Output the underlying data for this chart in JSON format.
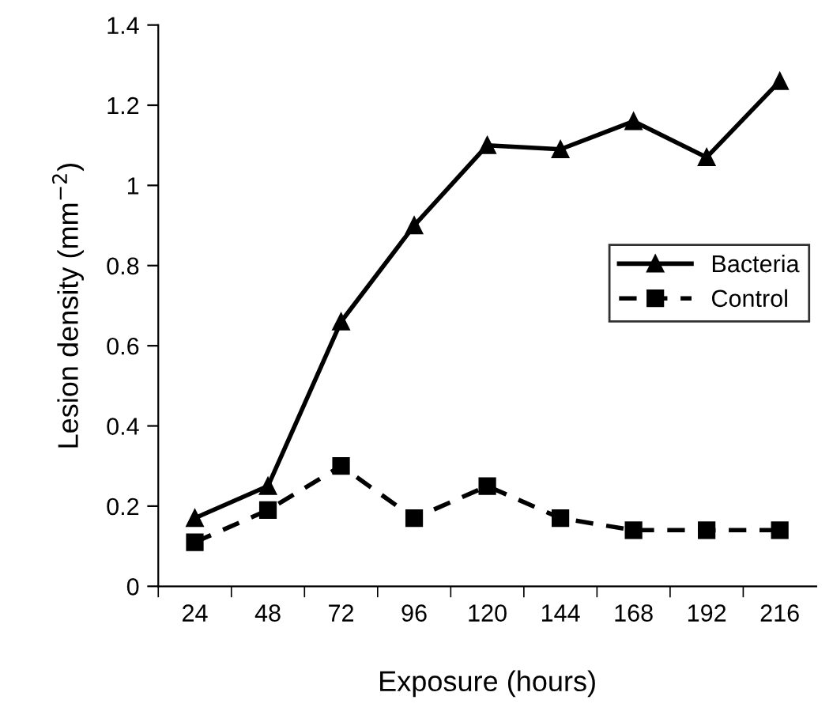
{
  "chart_data": {
    "type": "line",
    "xlabel": "Exposure (hours)",
    "ylabel": "Lesion density (mm$^{−2}$)",
    "categories": [
      "24",
      "48",
      "72",
      "96",
      "120",
      "144",
      "168",
      "192",
      "216"
    ],
    "series": [
      {
        "name": "Bacteria",
        "color": "#000000",
        "marker": "triangle",
        "line_style": "solid",
        "values": [
          0.17,
          0.25,
          0.66,
          0.9,
          1.1,
          1.09,
          1.16,
          1.07,
          1.26
        ]
      },
      {
        "name": "Control",
        "color": "#000000",
        "marker": "square",
        "line_style": "dashed",
        "values": [
          0.11,
          0.19,
          0.3,
          0.17,
          0.25,
          0.17,
          0.14,
          0.14,
          0.14
        ]
      }
    ],
    "ylim": [
      0,
      1.4
    ],
    "yticks": [
      0,
      0.2,
      0.4,
      0.6,
      0.8,
      1,
      1.2,
      1.4
    ],
    "grid": false,
    "legend": "right"
  }
}
